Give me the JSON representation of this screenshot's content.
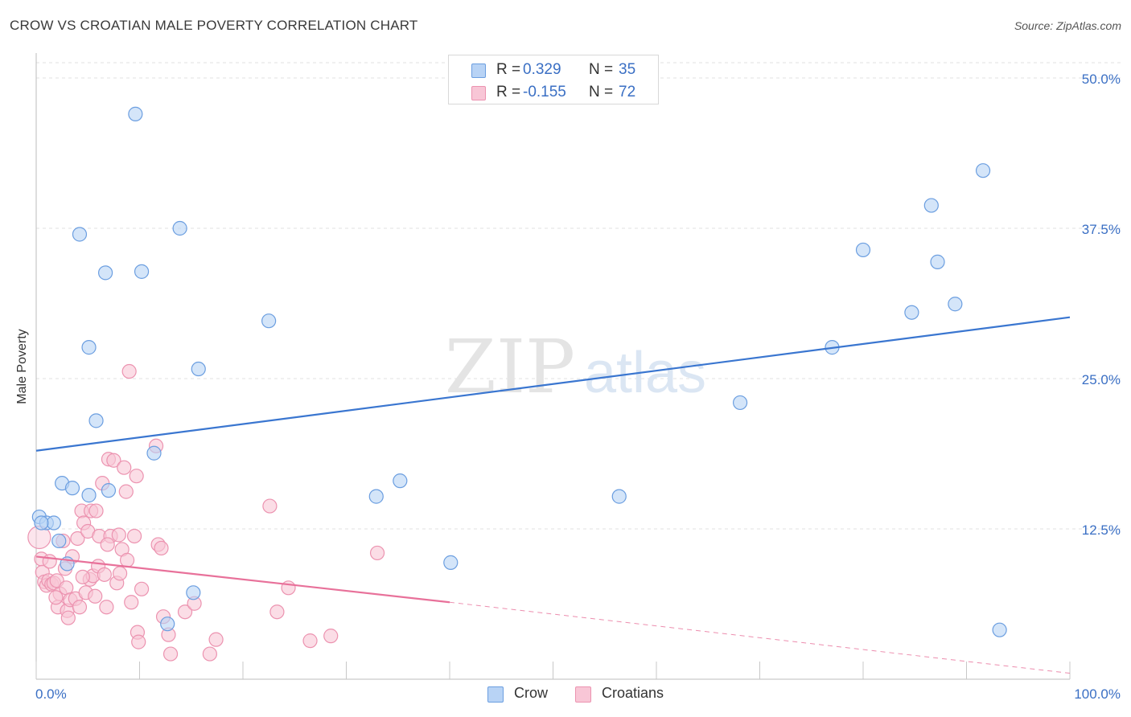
{
  "title": "CROW VS CROATIAN MALE POVERTY CORRELATION CHART",
  "source": "Source: ZipAtlas.com",
  "watermark": {
    "zip": "ZIP",
    "atlas": "atlas"
  },
  "legend": {
    "rows": [
      {
        "r_label": "R =",
        "r_value": "0.329",
        "n_label": "N =",
        "n_value": "35",
        "fill": "#b8d3f5",
        "stroke": "#6b9ee0"
      },
      {
        "r_label": "R =",
        "r_value": "-0.155",
        "n_label": "N =",
        "n_value": "72",
        "fill": "#f8c6d6",
        "stroke": "#ec93b0"
      }
    ]
  },
  "bottom_legend": [
    {
      "label": "Crow",
      "fill": "#b8d3f5",
      "stroke": "#6b9ee0"
    },
    {
      "label": "Croatians",
      "fill": "#f8c6d6",
      "stroke": "#ec93b0"
    }
  ],
  "chart_data": {
    "type": "scatter",
    "title": "CROW VS CROATIAN MALE POVERTY CORRELATION CHART",
    "xlabel": "",
    "ylabel": "Male Poverty",
    "xlim": [
      0,
      100
    ],
    "ylim": [
      0,
      50
    ],
    "x_tick_labels": [
      "0.0%",
      "100.0%"
    ],
    "y_ticks": [
      12.5,
      25.0,
      37.5,
      50.0
    ],
    "y_tick_labels": [
      "12.5%",
      "25.0%",
      "37.5%",
      "50.0%"
    ],
    "grid": true,
    "legend_position": "top-center",
    "series": [
      {
        "name": "Crow",
        "color": "#6b9ee0",
        "fill": "#b8d3f5",
        "trend_color": "#3a76d0",
        "trend": {
          "x": [
            0,
            100
          ],
          "y": [
            19.0,
            30.1
          ]
        },
        "points": [
          {
            "x": 0.3,
            "y": 13.5
          },
          {
            "x": 1.0,
            "y": 13.0
          },
          {
            "x": 1.7,
            "y": 13.0
          },
          {
            "x": 2.2,
            "y": 11.5
          },
          {
            "x": 2.5,
            "y": 16.3
          },
          {
            "x": 3.0,
            "y": 9.6
          },
          {
            "x": 3.5,
            "y": 15.9
          },
          {
            "x": 4.2,
            "y": 37.0
          },
          {
            "x": 5.1,
            "y": 27.6
          },
          {
            "x": 5.1,
            "y": 15.3
          },
          {
            "x": 5.8,
            "y": 21.5
          },
          {
            "x": 6.7,
            "y": 33.8
          },
          {
            "x": 7.0,
            "y": 15.7
          },
          {
            "x": 9.6,
            "y": 47.0
          },
          {
            "x": 10.2,
            "y": 33.9
          },
          {
            "x": 11.4,
            "y": 18.8
          },
          {
            "x": 12.7,
            "y": 4.6
          },
          {
            "x": 13.9,
            "y": 37.5
          },
          {
            "x": 15.2,
            "y": 7.2
          },
          {
            "x": 15.7,
            "y": 25.8
          },
          {
            "x": 22.5,
            "y": 29.8
          },
          {
            "x": 32.9,
            "y": 15.2
          },
          {
            "x": 35.2,
            "y": 16.5
          },
          {
            "x": 40.1,
            "y": 9.7
          },
          {
            "x": 56.4,
            "y": 15.2
          },
          {
            "x": 68.1,
            "y": 23.0
          },
          {
            "x": 77.0,
            "y": 27.6
          },
          {
            "x": 80.0,
            "y": 35.7
          },
          {
            "x": 84.7,
            "y": 30.5
          },
          {
            "x": 86.6,
            "y": 39.4
          },
          {
            "x": 87.2,
            "y": 34.7
          },
          {
            "x": 88.9,
            "y": 31.2
          },
          {
            "x": 91.6,
            "y": 42.3
          },
          {
            "x": 93.2,
            "y": 4.1
          },
          {
            "x": 0.5,
            "y": 13.0
          }
        ]
      },
      {
        "name": "Croatians",
        "color": "#ec93b0",
        "fill": "#f8c6d6",
        "trend_color": "#e8719a",
        "trend": {
          "x": [
            0,
            40
          ],
          "y": [
            10.2,
            6.4
          ]
        },
        "trend_dashed": {
          "x": [
            40,
            100
          ],
          "y": [
            6.4,
            0.5
          ]
        },
        "points": [
          {
            "x": 0.3,
            "y": 11.8,
            "big": true
          },
          {
            "x": 0.5,
            "y": 10.0
          },
          {
            "x": 0.6,
            "y": 8.9
          },
          {
            "x": 0.8,
            "y": 8.1
          },
          {
            "x": 1.0,
            "y": 7.8
          },
          {
            "x": 1.2,
            "y": 8.2
          },
          {
            "x": 1.3,
            "y": 9.8
          },
          {
            "x": 1.5,
            "y": 7.9
          },
          {
            "x": 1.7,
            "y": 8.0
          },
          {
            "x": 2.0,
            "y": 8.2
          },
          {
            "x": 2.1,
            "y": 6.0
          },
          {
            "x": 2.3,
            "y": 7.1
          },
          {
            "x": 2.6,
            "y": 11.5
          },
          {
            "x": 2.9,
            "y": 7.6
          },
          {
            "x": 3.0,
            "y": 5.7
          },
          {
            "x": 3.1,
            "y": 5.1
          },
          {
            "x": 3.3,
            "y": 6.6
          },
          {
            "x": 3.5,
            "y": 10.2
          },
          {
            "x": 3.8,
            "y": 6.7
          },
          {
            "x": 4.0,
            "y": 11.7
          },
          {
            "x": 4.2,
            "y": 6.0
          },
          {
            "x": 4.4,
            "y": 14.0
          },
          {
            "x": 4.6,
            "y": 13.0
          },
          {
            "x": 4.8,
            "y": 7.2
          },
          {
            "x": 5.0,
            "y": 12.3
          },
          {
            "x": 5.2,
            "y": 8.3
          },
          {
            "x": 5.3,
            "y": 14.0
          },
          {
            "x": 5.5,
            "y": 8.6
          },
          {
            "x": 5.7,
            "y": 6.9
          },
          {
            "x": 5.8,
            "y": 14.0
          },
          {
            "x": 6.0,
            "y": 9.4
          },
          {
            "x": 6.1,
            "y": 11.9
          },
          {
            "x": 6.4,
            "y": 16.3
          },
          {
            "x": 6.6,
            "y": 8.7
          },
          {
            "x": 6.8,
            "y": 6.0
          },
          {
            "x": 7.0,
            "y": 18.3
          },
          {
            "x": 7.2,
            "y": 11.9
          },
          {
            "x": 7.5,
            "y": 18.2
          },
          {
            "x": 7.8,
            "y": 8.0
          },
          {
            "x": 8.0,
            "y": 12.0
          },
          {
            "x": 8.1,
            "y": 8.8
          },
          {
            "x": 8.3,
            "y": 10.8
          },
          {
            "x": 8.5,
            "y": 17.6
          },
          {
            "x": 8.7,
            "y": 15.6
          },
          {
            "x": 8.8,
            "y": 9.9
          },
          {
            "x": 9.0,
            "y": 25.6
          },
          {
            "x": 9.2,
            "y": 6.4
          },
          {
            "x": 9.5,
            "y": 11.9
          },
          {
            "x": 9.7,
            "y": 16.9
          },
          {
            "x": 9.8,
            "y": 3.9
          },
          {
            "x": 9.9,
            "y": 3.1
          },
          {
            "x": 10.2,
            "y": 7.5
          },
          {
            "x": 11.6,
            "y": 19.4
          },
          {
            "x": 11.8,
            "y": 11.2
          },
          {
            "x": 12.1,
            "y": 10.9
          },
          {
            "x": 12.3,
            "y": 5.2
          },
          {
            "x": 12.8,
            "y": 3.7
          },
          {
            "x": 13.0,
            "y": 2.1
          },
          {
            "x": 14.4,
            "y": 5.6
          },
          {
            "x": 15.3,
            "y": 6.3
          },
          {
            "x": 16.8,
            "y": 2.1
          },
          {
            "x": 17.4,
            "y": 3.3
          },
          {
            "x": 22.6,
            "y": 14.4
          },
          {
            "x": 23.3,
            "y": 5.6
          },
          {
            "x": 24.4,
            "y": 7.6
          },
          {
            "x": 26.5,
            "y": 3.2
          },
          {
            "x": 28.5,
            "y": 3.6
          },
          {
            "x": 33.0,
            "y": 10.5
          },
          {
            "x": 4.5,
            "y": 8.5
          },
          {
            "x": 2.8,
            "y": 9.2
          },
          {
            "x": 6.9,
            "y": 11.2
          },
          {
            "x": 1.9,
            "y": 6.8
          }
        ]
      }
    ]
  }
}
